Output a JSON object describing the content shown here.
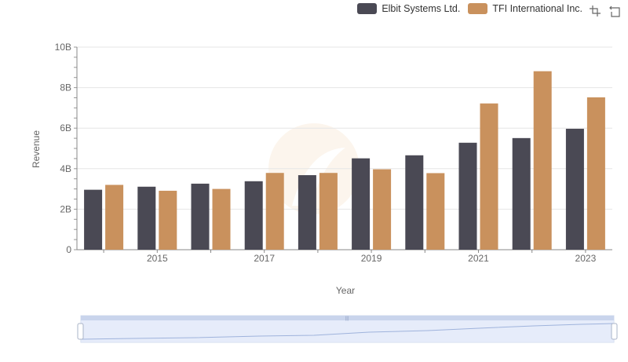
{
  "legend": {
    "items": [
      {
        "label": "Elbit Systems Ltd.",
        "color": "#4a4954"
      },
      {
        "label": "TFI International Inc.",
        "color": "#c9915d"
      }
    ]
  },
  "toolbox": {
    "icons": [
      "zoom-icon",
      "zoom-reset-icon"
    ]
  },
  "chart_data": {
    "type": "bar",
    "categories": [
      "2014",
      "2015",
      "2016",
      "2017",
      "2018",
      "2019",
      "2020",
      "2021",
      "2022",
      "2023"
    ],
    "x_tick_labels": [
      "2015",
      "2017",
      "2019",
      "2021",
      "2023"
    ],
    "series": [
      {
        "name": "Elbit Systems Ltd.",
        "color": "#4a4954",
        "values": [
          2.96,
          3.11,
          3.26,
          3.38,
          3.68,
          4.51,
          4.66,
          5.28,
          5.51,
          5.97
        ]
      },
      {
        "name": "TFI International Inc.",
        "color": "#c9915d",
        "values": [
          3.2,
          2.91,
          3.0,
          3.79,
          3.79,
          3.97,
          3.78,
          7.22,
          8.81,
          7.52
        ]
      }
    ],
    "ylim": [
      0,
      10
    ],
    "y_ticks": [
      {
        "value": 0,
        "label": "0"
      },
      {
        "value": 2,
        "label": "2B"
      },
      {
        "value": 4,
        "label": "4B"
      },
      {
        "value": 6,
        "label": "6B"
      },
      {
        "value": 8,
        "label": "8B"
      },
      {
        "value": 10,
        "label": "10B"
      }
    ],
    "xlabel": "Year",
    "ylabel": "Revenue",
    "grid": true,
    "legend_position": "top-right"
  }
}
